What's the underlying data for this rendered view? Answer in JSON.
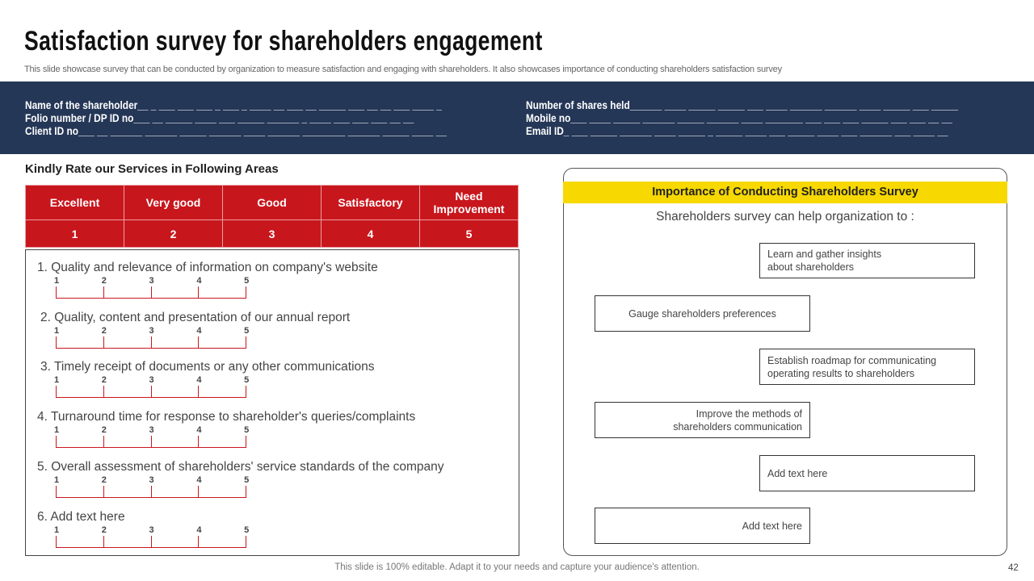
{
  "title": "Satisfaction survey for shareholders engagement",
  "subtitle": "This slide showcase survey that can be conducted by organization to measure satisfaction and engaging with shareholders. It also showcases importance of conducting shareholders satisfaction survey",
  "fields": {
    "left": [
      "Name of the shareholder__ _ ___ ___ ___ _ ___ _ ____ __ ___ __ _____ ___ __ __ ___ ____ _",
      "Folio number / DP ID no___ __ _____ ____ ___ _____ ______ _ ____ ___ ___ ___ __ __",
      "Client ID no___ __ ______ ______ _____ ______ ____ ______ ________ ______ _____ ____ __"
    ],
    "right": [
      "Number of shares  held______ ____ _____ _____ ___ ____ ______ ______ ____ _____ ___ _____",
      "Mobile no___ ____ _____ ______ _____ ______ ____ _______ ___ ___ ___ _____ ___ ___ __ __",
      "Email ID_ ___ _____ ______ ____ _____ _ _____ ____ ___ _____ ____ ___ ______ ___ ____ __"
    ]
  },
  "rating": {
    "heading": "Kindly Rate our Services in Following Areas",
    "labels": [
      "Excellent",
      "Very good",
      "Good",
      "Satisfactory",
      "Need Improvement"
    ],
    "values": [
      "1",
      "2",
      "3",
      "4",
      "5"
    ]
  },
  "questions": [
    "1. Quality and relevance of information on company's website",
    "2. Quality,  content  and presentation of our annual report",
    "3. Timely receipt of documents or any other communications",
    "4. Turnaround  time for response to shareholder's queries/complaints",
    "5. Overall assessment of shareholders' service standards of the company",
    "6. Add text here"
  ],
  "scale_ticks": [
    "1",
    "2",
    "3",
    "4",
    "5"
  ],
  "importance": {
    "heading": "Importance of Conducting Shareholders Survey",
    "intro": "Shareholders survey  can help organization to :",
    "items": [
      "Learn and gather insights about shareholders",
      "Gauge shareholders  preferences",
      "Establish roadmap for communicating operating results to shareholders",
      "Improve  the methods of shareholders communication",
      "Add text here",
      "Add text here"
    ]
  },
  "footer": "This slide is 100% editable. Adapt it to your needs and capture your audience's attention.",
  "page_number": "42",
  "colors": {
    "navy": "#253757",
    "red": "#c8161d",
    "yellow": "#f7d800"
  }
}
